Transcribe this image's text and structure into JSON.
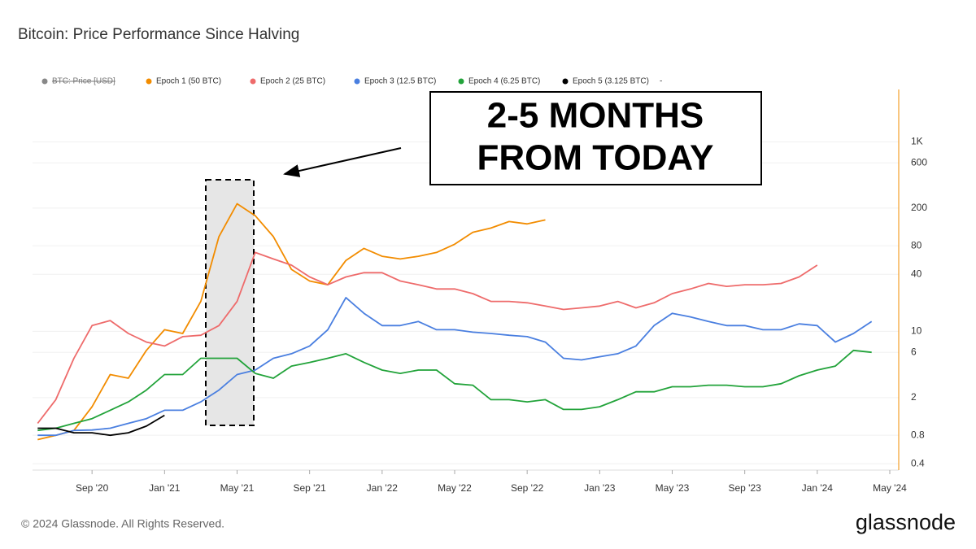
{
  "chart_data": {
    "type": "line",
    "title": "Bitcoin: Price Performance Since Halving",
    "footer": "© 2024 Glassnode. All Rights Reserved.",
    "logo": "glassnode",
    "annotation": [
      "2-5 MONTHS",
      "FROM TODAY"
    ],
    "hidden_legend": [
      {
        "name": "BTC: Price [USD]",
        "color": "#888888"
      }
    ],
    "legend_extra": "-",
    "log_scale": true,
    "grid": true,
    "xlim": [
      "2020-05",
      "2024-05"
    ],
    "xticks": [
      {
        "value": "2020-09",
        "label": "Sep '20"
      },
      {
        "value": "2021-01",
        "label": "Jan '21"
      },
      {
        "value": "2021-05",
        "label": "May '21"
      },
      {
        "value": "2021-09",
        "label": "Sep '21"
      },
      {
        "value": "2022-01",
        "label": "Jan '22"
      },
      {
        "value": "2022-05",
        "label": "May '22"
      },
      {
        "value": "2022-09",
        "label": "Sep '22"
      },
      {
        "value": "2023-01",
        "label": "Jan '23"
      },
      {
        "value": "2023-05",
        "label": "May '23"
      },
      {
        "value": "2023-09",
        "label": "Sep '23"
      },
      {
        "value": "2024-01",
        "label": "Jan '24"
      },
      {
        "value": "2024-05",
        "label": "May '24"
      }
    ],
    "ylim": [
      0.35,
      3500
    ],
    "yticks": [
      0.4,
      0.8,
      2,
      6,
      10,
      40,
      80,
      200,
      600,
      {
        "value": 1000,
        "label": "1K"
      }
    ],
    "x": [
      "2020-06",
      "2020-07",
      "2020-08",
      "2020-09",
      "2020-10",
      "2020-11",
      "2020-12",
      "2021-01",
      "2021-02",
      "2021-03",
      "2021-04",
      "2021-05",
      "2021-06",
      "2021-07",
      "2021-08",
      "2021-09",
      "2021-10",
      "2021-11",
      "2021-12",
      "2022-01",
      "2022-02",
      "2022-03",
      "2022-04",
      "2022-05",
      "2022-06",
      "2022-07",
      "2022-08",
      "2022-09",
      "2022-10",
      "2022-11",
      "2022-12",
      "2023-01",
      "2023-02",
      "2023-03",
      "2023-04",
      "2023-05",
      "2023-06",
      "2023-07",
      "2023-08",
      "2023-09",
      "2023-10",
      "2023-11",
      "2023-12",
      "2024-01",
      "2024-02",
      "2024-03",
      "2024-04"
    ],
    "series": [
      {
        "name": "Epoch 1 (50 BTC)",
        "color": "#f28c00",
        "values": [
          0.72,
          0.8,
          0.9,
          1.6,
          3.5,
          3.2,
          6.3,
          10.4,
          9.5,
          20.7,
          100,
          222,
          166,
          100,
          45,
          34,
          31,
          56,
          75,
          62,
          58,
          62,
          68,
          83,
          111,
          123,
          144,
          136,
          150,
          null,
          null,
          null,
          null,
          null,
          null,
          null,
          null,
          null,
          null,
          null,
          null,
          null,
          null,
          null,
          null,
          null,
          null
        ]
      },
      {
        "name": "Epoch 2 (25 BTC)",
        "color": "#ee6b6b",
        "values": [
          1.07,
          1.9,
          5.2,
          11.5,
          13,
          9.5,
          7.7,
          7,
          8.8,
          9.1,
          11.5,
          20.7,
          68,
          58,
          50,
          37.5,
          31,
          37.5,
          41.6,
          41.6,
          34,
          31,
          28,
          28,
          25,
          20.7,
          20.7,
          20,
          18.5,
          17,
          17.7,
          18.5,
          20.7,
          17.7,
          20,
          25,
          28,
          32,
          29.8,
          31,
          31,
          32,
          37.5,
          50,
          null,
          null,
          null
        ]
      },
      {
        "name": "Epoch 3 (12.5 BTC)",
        "color": "#4a7fe0",
        "values": [
          0.8,
          0.8,
          0.9,
          0.91,
          0.95,
          1.07,
          1.2,
          1.47,
          1.47,
          1.8,
          2.4,
          3.5,
          3.9,
          5.2,
          5.8,
          7,
          10.4,
          22.7,
          15.5,
          11.5,
          11.5,
          12.7,
          10.4,
          10.4,
          9.8,
          9.5,
          9.1,
          8.8,
          7.7,
          5.2,
          5,
          5.4,
          5.8,
          7,
          11.5,
          15.5,
          14.2,
          12.7,
          11.5,
          11.5,
          10.4,
          10.4,
          12,
          11.5,
          7.7,
          9.5,
          12.7
        ]
      },
      {
        "name": "Epoch 4 (6.25 BTC)",
        "color": "#22a33a",
        "values": [
          0.9,
          0.95,
          1.07,
          1.2,
          1.47,
          1.8,
          2.4,
          3.5,
          3.5,
          5.2,
          5.2,
          5.2,
          3.6,
          3.2,
          4.3,
          4.7,
          5.2,
          5.8,
          4.7,
          3.9,
          3.6,
          3.9,
          3.9,
          2.8,
          2.7,
          1.9,
          1.9,
          1.8,
          1.9,
          1.5,
          1.5,
          1.6,
          1.9,
          2.3,
          2.3,
          2.6,
          2.6,
          2.7,
          2.7,
          2.6,
          2.6,
          2.8,
          3.4,
          3.9,
          4.3,
          6.3,
          6
        ]
      },
      {
        "name": "Epoch 5 (3.125 BTC)",
        "color": "#000000",
        "values": [
          0.95,
          0.95,
          0.85,
          0.85,
          0.8,
          0.85,
          1.0,
          1.3,
          null,
          null,
          null,
          null,
          null,
          null,
          null,
          null,
          null,
          null,
          null,
          null,
          null,
          null,
          null,
          null,
          null,
          null,
          null,
          null,
          null,
          null,
          null,
          null,
          null,
          null,
          null,
          null,
          null,
          null,
          null,
          null,
          null,
          null,
          null,
          null,
          null,
          null,
          null
        ]
      }
    ]
  }
}
